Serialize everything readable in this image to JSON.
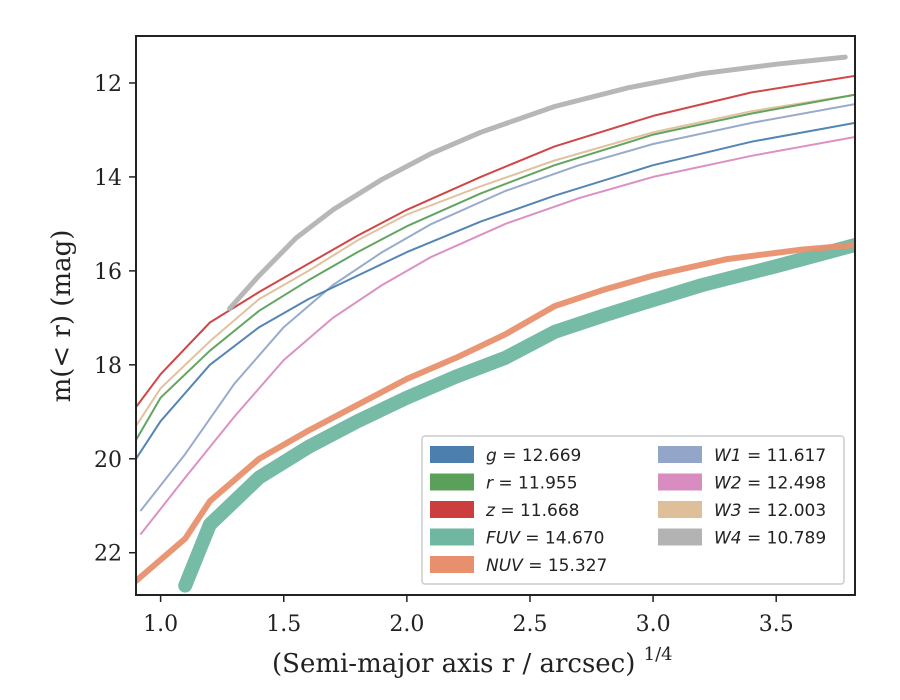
{
  "chart_data": {
    "type": "line",
    "xlabel": "(Semi-major axis r / arcsec)",
    "xlabel_exponent": "1/4",
    "ylabel": "m(< r) (mag)",
    "xlim": [
      0.9,
      3.82
    ],
    "ylim": [
      22.9,
      11.0
    ],
    "y_inverted": true,
    "xticks": [
      1.0,
      1.5,
      2.0,
      2.5,
      3.0,
      3.5
    ],
    "xtick_labels": [
      "1.0",
      "1.5",
      "2.0",
      "2.5",
      "3.0",
      "3.5"
    ],
    "yticks": [
      12,
      14,
      16,
      18,
      20,
      22
    ],
    "ytick_labels": [
      "12",
      "14",
      "16",
      "18",
      "20",
      "22"
    ],
    "legend_placement": "lower-right",
    "legend_columns": 2,
    "series": [
      {
        "name": "g",
        "value": "12.669",
        "color": "#4c7eae",
        "points": [
          [
            0.9,
            20.0
          ],
          [
            1.0,
            19.2
          ],
          [
            1.2,
            18.0
          ],
          [
            1.4,
            17.2
          ],
          [
            1.6,
            16.6
          ],
          [
            1.8,
            16.1
          ],
          [
            2.0,
            15.6
          ],
          [
            2.3,
            14.95
          ],
          [
            2.6,
            14.4
          ],
          [
            3.0,
            13.75
          ],
          [
            3.4,
            13.25
          ],
          [
            3.82,
            12.85
          ]
        ]
      },
      {
        "name": "r",
        "value": "11.955",
        "color": "#5aa05a",
        "points": [
          [
            0.9,
            19.6
          ],
          [
            1.0,
            18.7
          ],
          [
            1.2,
            17.7
          ],
          [
            1.4,
            16.85
          ],
          [
            1.6,
            16.2
          ],
          [
            1.8,
            15.6
          ],
          [
            2.0,
            15.05
          ],
          [
            2.3,
            14.35
          ],
          [
            2.6,
            13.75
          ],
          [
            3.0,
            13.1
          ],
          [
            3.4,
            12.65
          ],
          [
            3.82,
            12.25
          ]
        ]
      },
      {
        "name": "z",
        "value": "11.668",
        "color": "#cc3d3d",
        "points": [
          [
            0.9,
            18.9
          ],
          [
            1.0,
            18.2
          ],
          [
            1.2,
            17.1
          ],
          [
            1.4,
            16.45
          ],
          [
            1.6,
            15.85
          ],
          [
            1.8,
            15.25
          ],
          [
            2.0,
            14.7
          ],
          [
            2.3,
            14.0
          ],
          [
            2.6,
            13.35
          ],
          [
            3.0,
            12.7
          ],
          [
            3.4,
            12.2
          ],
          [
            3.82,
            11.85
          ]
        ]
      },
      {
        "name": "FUV",
        "value": "14.670",
        "color": "#6fb7a0",
        "points": [
          [
            1.1,
            22.7
          ],
          [
            1.2,
            21.4
          ],
          [
            1.4,
            20.4
          ],
          [
            1.6,
            19.75
          ],
          [
            1.8,
            19.2
          ],
          [
            2.0,
            18.7
          ],
          [
            2.2,
            18.25
          ],
          [
            2.4,
            17.85
          ],
          [
            2.6,
            17.3
          ],
          [
            2.8,
            16.95
          ],
          [
            2.95,
            16.7
          ],
          [
            3.2,
            16.3
          ],
          [
            3.5,
            15.9
          ],
          [
            3.82,
            15.45
          ]
        ]
      },
      {
        "name": "NUV",
        "value": "15.327",
        "color": "#e8906d",
        "points": [
          [
            0.9,
            22.6
          ],
          [
            1.1,
            21.7
          ],
          [
            1.2,
            20.9
          ],
          [
            1.4,
            20.0
          ],
          [
            1.6,
            19.4
          ],
          [
            1.8,
            18.85
          ],
          [
            2.0,
            18.3
          ],
          [
            2.2,
            17.85
          ],
          [
            2.4,
            17.35
          ],
          [
            2.6,
            16.75
          ],
          [
            2.8,
            16.4
          ],
          [
            3.0,
            16.1
          ],
          [
            3.3,
            15.75
          ],
          [
            3.6,
            15.55
          ],
          [
            3.82,
            15.45
          ]
        ]
      },
      {
        "name": "W1",
        "value": "11.617",
        "color": "#93a6c9",
        "points": [
          [
            0.92,
            21.1
          ],
          [
            1.1,
            19.9
          ],
          [
            1.3,
            18.4
          ],
          [
            1.5,
            17.2
          ],
          [
            1.7,
            16.3
          ],
          [
            1.9,
            15.6
          ],
          [
            2.1,
            15.0
          ],
          [
            2.4,
            14.3
          ],
          [
            2.7,
            13.75
          ],
          [
            3.0,
            13.3
          ],
          [
            3.4,
            12.85
          ],
          [
            3.82,
            12.45
          ]
        ]
      },
      {
        "name": "W2",
        "value": "12.498",
        "color": "#d98cc0",
        "points": [
          [
            0.92,
            21.6
          ],
          [
            1.1,
            20.4
          ],
          [
            1.3,
            19.1
          ],
          [
            1.5,
            17.9
          ],
          [
            1.7,
            17.0
          ],
          [
            1.9,
            16.3
          ],
          [
            2.1,
            15.7
          ],
          [
            2.4,
            15.0
          ],
          [
            2.7,
            14.45
          ],
          [
            3.0,
            14.0
          ],
          [
            3.4,
            13.55
          ],
          [
            3.82,
            13.15
          ]
        ]
      },
      {
        "name": "W3",
        "value": "12.003",
        "color": "#dfbf99",
        "points": [
          [
            0.9,
            19.3
          ],
          [
            1.0,
            18.5
          ],
          [
            1.2,
            17.5
          ],
          [
            1.4,
            16.6
          ],
          [
            1.6,
            16.0
          ],
          [
            1.8,
            15.35
          ],
          [
            2.0,
            14.8
          ],
          [
            2.3,
            14.2
          ],
          [
            2.6,
            13.65
          ],
          [
            3.0,
            13.05
          ],
          [
            3.4,
            12.6
          ],
          [
            3.82,
            12.25
          ]
        ]
      },
      {
        "name": "W4",
        "value": "10.789",
        "color": "#b3b3b3",
        "points": [
          [
            1.28,
            16.8
          ],
          [
            1.4,
            16.1
          ],
          [
            1.55,
            15.3
          ],
          [
            1.7,
            14.7
          ],
          [
            1.9,
            14.05
          ],
          [
            2.1,
            13.5
          ],
          [
            2.3,
            13.05
          ],
          [
            2.6,
            12.5
          ],
          [
            2.9,
            12.1
          ],
          [
            3.2,
            11.8
          ],
          [
            3.5,
            11.6
          ],
          [
            3.78,
            11.45
          ]
        ]
      }
    ]
  }
}
